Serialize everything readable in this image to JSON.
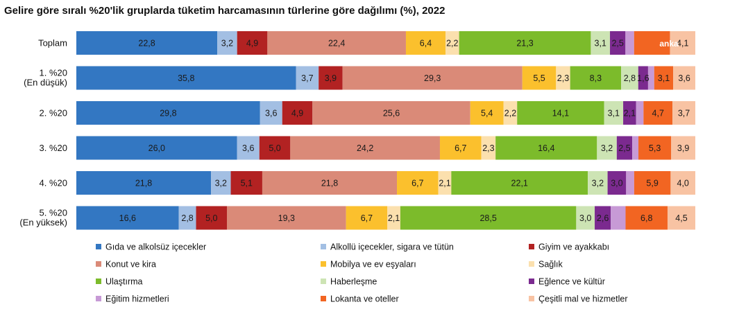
{
  "chart_data": {
    "type": "bar",
    "orientation": "horizontal",
    "stacked": true,
    "title": "Gelire göre sıralı %20'lik gruplarda tüketim harcamasının türlerine göre dağılımı (%), 2022",
    "xlabel": "",
    "ylabel": "",
    "grid": false,
    "legend_position": "bottom",
    "categories": [
      [
        "Toplam"
      ],
      [
        "1. %20",
        "(En düşük)"
      ],
      [
        "2. %20"
      ],
      [
        "3. %20"
      ],
      [
        "4. %20"
      ],
      [
        "5. %20",
        "(En yüksek)"
      ]
    ],
    "series": [
      {
        "name": "Gıda ve alkolsüz içecekler",
        "color": "#3377c2",
        "values": [
          22.8,
          35.8,
          29.8,
          26.0,
          21.8,
          16.6
        ],
        "labels": [
          "22,8",
          "35,8",
          "29,8",
          "26,0",
          "21,8",
          "16,6"
        ]
      },
      {
        "name": "Alkollü içecekler, sigara ve tütün",
        "color": "#a3bfe3",
        "values": [
          3.2,
          3.7,
          3.6,
          3.6,
          3.2,
          2.8
        ],
        "labels": [
          "3,2",
          "3,7",
          "3,6",
          "3,6",
          "3,2",
          "2,8"
        ]
      },
      {
        "name": "Giyim ve ayakkabı",
        "color": "#b22222",
        "values": [
          4.9,
          3.9,
          4.9,
          5.0,
          5.1,
          5.0
        ],
        "labels": [
          "4,9",
          "3,9",
          "4,9",
          "5,0",
          "5,1",
          "5,0"
        ]
      },
      {
        "name": "Konut ve kira",
        "color": "#da8a78",
        "values": [
          22.4,
          29.3,
          25.6,
          24.2,
          21.8,
          19.3
        ],
        "labels": [
          "22,4",
          "29,3",
          "25,6",
          "24,2",
          "21,8",
          "19,3"
        ]
      },
      {
        "name": "Mobilya ve ev eşyaları",
        "color": "#fbc02d",
        "values": [
          6.4,
          5.5,
          5.4,
          6.7,
          6.7,
          6.7
        ],
        "labels": [
          "6,4",
          "5,5",
          "5,4",
          "6,7",
          "6,7",
          "6,7"
        ]
      },
      {
        "name": "Sağlık",
        "color": "#fbe0ae",
        "values": [
          2.2,
          2.3,
          2.2,
          2.3,
          2.1,
          2.1
        ],
        "labels": [
          "2,2",
          "2,3",
          "2,2",
          "2,3",
          "2,1",
          "2,1"
        ]
      },
      {
        "name": "Ulaştırma",
        "color": "#7cbb2b",
        "values": [
          21.3,
          8.3,
          14.1,
          16.4,
          22.1,
          28.5
        ],
        "labels": [
          "21,3",
          "8,3",
          "14,1",
          "16,4",
          "22,1",
          "28,5"
        ]
      },
      {
        "name": "Haberleşme",
        "color": "#cde4b4",
        "values": [
          3.1,
          2.8,
          3.1,
          3.2,
          3.2,
          3.0
        ],
        "labels": [
          "3,1",
          "2,8",
          "3,1",
          "3,2",
          "3,2",
          "3,0"
        ]
      },
      {
        "name": "Eğlence ve kültür",
        "color": "#7b2a8f",
        "values": [
          2.5,
          1.6,
          2.1,
          2.5,
          3.0,
          2.6
        ],
        "labels": [
          "2,5",
          "1,6",
          "2,1",
          "2,5",
          "3,0",
          "2,6"
        ]
      },
      {
        "name": "Eğitim hizmetleri",
        "color": "#c79ad6",
        "values": [
          1.4,
          1.0,
          1.2,
          1.0,
          1.3,
          2.4
        ],
        "labels": [
          "",
          "",
          "",
          "",
          "",
          ""
        ]
      },
      {
        "name": "Lokanta ve oteller",
        "color": "#f26522",
        "values": [
          5.8,
          3.1,
          4.7,
          5.3,
          5.9,
          6.8
        ],
        "labels": [
          "",
          "3,1",
          "4,7",
          "5,3",
          "5,9",
          "6,8"
        ]
      },
      {
        "name": "Çeşitli mal ve hizmetler",
        "color": "#f8c3a3",
        "values": [
          4.1,
          3.6,
          3.7,
          3.9,
          4.0,
          4.5
        ],
        "labels": [
          "4,1",
          "3,6",
          "3,7",
          "3,9",
          "4,0",
          "4,5"
        ]
      }
    ],
    "watermark": "anka"
  }
}
